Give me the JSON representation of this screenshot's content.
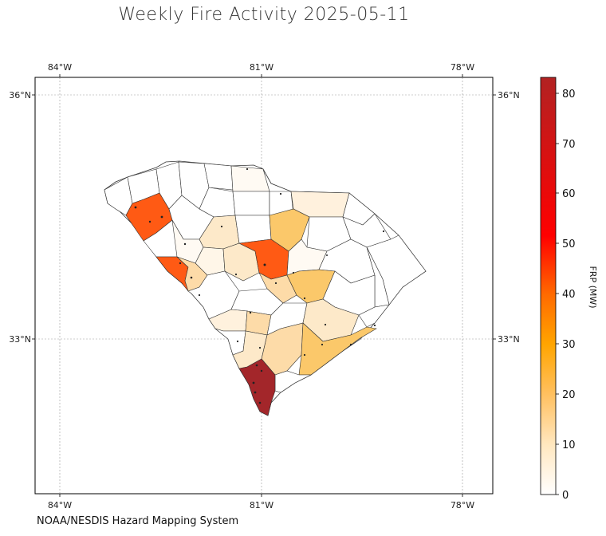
{
  "title": "Weekly Fire Activity 2025-05-11",
  "source": "NOAA/NESDIS Hazard Mapping System",
  "map": {
    "region": "South Carolina counties",
    "lon_ticks": [
      "84°W",
      "81°W",
      "78°W"
    ],
    "lat_ticks": [
      "36°N",
      "33°N"
    ],
    "grid": true
  },
  "colorbar": {
    "label": "FRP (MW)",
    "ticks": [
      "0",
      "10",
      "20",
      "30",
      "40",
      "50",
      "60",
      "70",
      "80"
    ],
    "min": 0,
    "max": 83,
    "colors": [
      "#ffffff",
      "#ffe7bf",
      "#ffc060",
      "#ffa500",
      "#ff6a00",
      "#ff0000",
      "#b22222"
    ]
  },
  "colors": {
    "very_light": "#fff6e8",
    "light": "#fde9c9",
    "light_mid": "#fddba8",
    "mid": "#fbc86a",
    "orange_red": "#ff5a14",
    "dark_red": "#a3262a"
  }
}
